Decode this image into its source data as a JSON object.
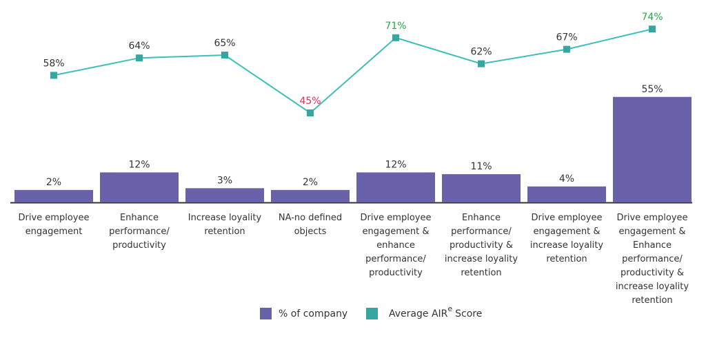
{
  "chart_data": {
    "type": "bar+line",
    "categories": [
      [
        "Drive employee",
        "engagement"
      ],
      [
        "Enhance",
        "performance/",
        "productivity"
      ],
      [
        "Increase loyality",
        "retention"
      ],
      [
        "NA-no defined",
        "objects"
      ],
      [
        "Drive employee",
        "engagement &",
        "enhance",
        "performance/",
        "productivity"
      ],
      [
        "Enhance",
        "performance/",
        "productivity &",
        "increase loyality",
        "retention"
      ],
      [
        "Drive employee",
        "engagement &",
        "increase loyality",
        "retention"
      ],
      [
        "Drive employee",
        "engagement &",
        "Enhance",
        "performance/",
        "productivity &",
        "increase loyality",
        "retention"
      ]
    ],
    "series": [
      {
        "name": "% of company",
        "type": "bar",
        "color": "#6a62a8",
        "values": [
          2,
          12,
          3,
          2,
          12,
          11,
          4,
          55
        ],
        "labels": [
          "2%",
          "12%",
          "3%",
          "2%",
          "12%",
          "11%",
          "4%",
          "55%"
        ]
      },
      {
        "name": "Average AIR",
        "name_superscript": "e",
        "name_suffix": "Score",
        "type": "line",
        "color": "#3bbfb8",
        "marker_color": "#34a8a0",
        "values": [
          58,
          64,
          65,
          45,
          71,
          62,
          67,
          74
        ],
        "labels": [
          "58%",
          "64%",
          "65%",
          "45%",
          "71%",
          "62%",
          "67%",
          "74%"
        ],
        "label_colors": [
          "#333333",
          "#333333",
          "#333333",
          "#e8285a",
          "#27a844",
          "#333333",
          "#333333",
          "#27a844"
        ]
      }
    ],
    "legend": "bottom-center",
    "grid": false
  }
}
